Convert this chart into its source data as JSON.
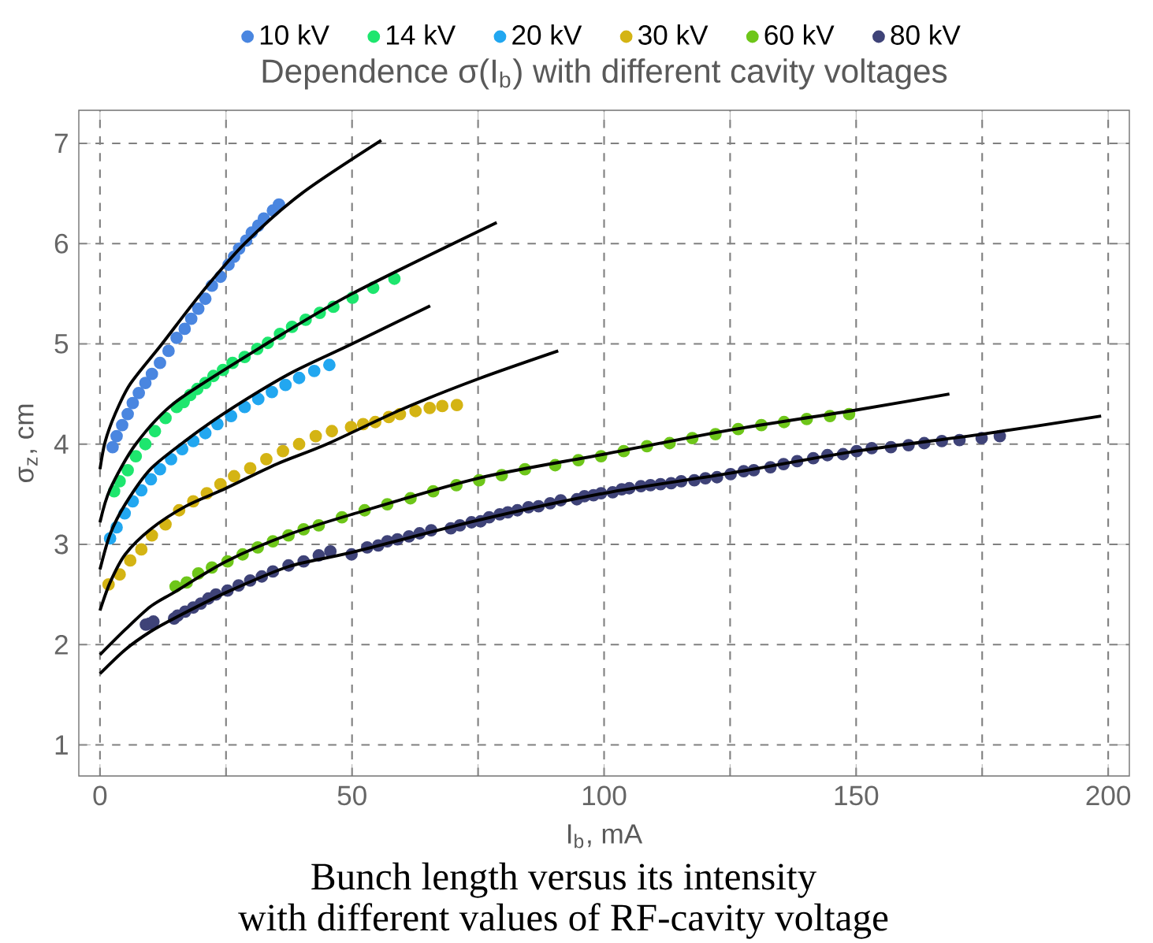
{
  "chart_data": {
    "type": "scatter",
    "title": "Dependence σ(I$_{b}$) with different cavity voltages",
    "xlabel": "I$_{b}$, mA",
    "ylabel": "σ$_{z}$, cm",
    "annotations": [
      "Bunch length versus its intensity",
      "with different values of RF-cavity voltage"
    ],
    "xlim": [
      -4.2,
      204.2
    ],
    "ylim": [
      0.69,
      7.33
    ],
    "xticks": [
      0,
      {
        "value": 25,
        "label": null
      },
      50,
      {
        "value": 75,
        "label": null
      },
      100,
      {
        "value": 125,
        "label": null
      },
      150,
      {
        "value": 175,
        "label": null
      },
      200
    ],
    "yticks": [
      1,
      2,
      3,
      4,
      5,
      6,
      7
    ],
    "grid": true,
    "legend": "top",
    "series": [
      {
        "name": "10 kV",
        "marker": "circle",
        "color": "#4a86e0",
        "x": [
          2.5,
          3.3,
          4.4,
          5.5,
          6.5,
          7.7,
          9,
          10.3,
          11.9,
          13.6,
          15.2,
          16.8,
          18.1,
          19.5,
          20.9,
          22.2,
          23.9,
          25.5,
          26.6,
          27.6,
          29,
          30.1,
          31.4,
          32.5,
          34.3,
          35.5
        ],
        "values": [
          3.97,
          4.08,
          4.19,
          4.3,
          4.41,
          4.51,
          4.61,
          4.7,
          4.81,
          4.93,
          5.06,
          5.15,
          5.25,
          5.35,
          5.45,
          5.58,
          5.67,
          5.79,
          5.87,
          5.95,
          6.03,
          6.11,
          6.18,
          6.25,
          6.33,
          6.39
        ]
      },
      {
        "name": "14 kV",
        "marker": "circle",
        "color": "#1ee66e",
        "x": [
          2.8,
          3.9,
          5.5,
          7.1,
          9,
          10.9,
          13,
          15.2,
          16.6,
          17.9,
          19.3,
          20.9,
          22.5,
          24.4,
          26.3,
          28.7,
          31.2,
          33.3,
          35.7,
          38.1,
          40.8,
          43.6,
          46.3,
          50.1,
          54.2,
          58.4
        ],
        "values": [
          3.53,
          3.63,
          3.74,
          3.88,
          4.0,
          4.13,
          4.26,
          4.37,
          4.42,
          4.49,
          4.55,
          4.61,
          4.68,
          4.74,
          4.81,
          4.87,
          4.95,
          5.01,
          5.1,
          5.17,
          5.24,
          5.31,
          5.37,
          5.46,
          5.56,
          5.65
        ]
      },
      {
        "name": "20 kV",
        "marker": "circle",
        "color": "#22a7f0",
        "x": [
          2,
          3.3,
          4.9,
          6.5,
          8.2,
          10.1,
          11.9,
          14.1,
          16.3,
          18.5,
          20.9,
          23.3,
          26,
          28.7,
          31.4,
          34.1,
          36.8,
          39.5,
          42.5,
          45.5
        ],
        "values": [
          3.06,
          3.17,
          3.31,
          3.43,
          3.54,
          3.65,
          3.75,
          3.85,
          3.95,
          4.03,
          4.11,
          4.2,
          4.28,
          4.37,
          4.45,
          4.52,
          4.59,
          4.66,
          4.73,
          4.79
        ]
      },
      {
        "name": "30 kV",
        "marker": "circle",
        "color": "#d4b414",
        "x": [
          1.7,
          3.9,
          6,
          8.2,
          10.3,
          13,
          15.7,
          18.5,
          21.2,
          23.9,
          26.6,
          29.8,
          33,
          36.3,
          39.5,
          42.8,
          46,
          49.8,
          52.2,
          54.6,
          57.3,
          59.5,
          62.6,
          65.4,
          67.9,
          70.8
        ],
        "values": [
          2.6,
          2.7,
          2.84,
          2.95,
          3.09,
          3.2,
          3.34,
          3.43,
          3.51,
          3.6,
          3.68,
          3.76,
          3.85,
          3.93,
          4.0,
          4.08,
          4.13,
          4.17,
          4.2,
          4.22,
          4.27,
          4.3,
          4.33,
          4.36,
          4.38,
          4.39
        ]
      },
      {
        "name": "60 kV",
        "marker": "circle",
        "color": "#6ec61a",
        "x": [
          15,
          17.2,
          19.5,
          22.2,
          25.3,
          28.3,
          31.3,
          34.3,
          37.4,
          40.4,
          43.4,
          48,
          52.5,
          57,
          61.6,
          66.1,
          70.7,
          75.2,
          79.7,
          84.3,
          90.3,
          94.9,
          99.4,
          103.9,
          108.5,
          113,
          117.5,
          122.1,
          126.6,
          131.2,
          135.7,
          140.2,
          144.8,
          148.6
        ],
        "values": [
          2.58,
          2.62,
          2.71,
          2.77,
          2.83,
          2.9,
          2.97,
          3.03,
          3.09,
          3.15,
          3.19,
          3.27,
          3.34,
          3.4,
          3.46,
          3.53,
          3.59,
          3.64,
          3.69,
          3.75,
          3.79,
          3.84,
          3.88,
          3.93,
          3.98,
          4.01,
          4.06,
          4.1,
          4.15,
          4.19,
          4.22,
          4.25,
          4.28,
          4.3
        ]
      },
      {
        "name": "80 kV",
        "marker": "circle",
        "color": "#3f4378",
        "x": [
          9.1,
          9.8,
          10.6,
          14.7,
          15.4,
          16.9,
          18.5,
          20,
          21.5,
          23,
          25.3,
          27.5,
          29.8,
          32.1,
          34.3,
          37.4,
          40.4,
          43.4,
          45.7,
          49.9,
          53,
          55.2,
          57,
          59,
          61.3,
          63.4,
          65.7,
          69.6,
          71.4,
          73.7,
          75.5,
          77.2,
          79.3,
          80.9,
          82.8,
          85,
          87,
          89.3,
          91.4,
          94.6,
          96.1,
          97.9,
          99.4,
          101.7,
          103.5,
          105,
          107.3,
          109.2,
          111.2,
          113.3,
          115.3,
          117.9,
          120.1,
          122.4,
          125.1,
          127.7,
          129.7,
          133,
          135.6,
          138.3,
          141.5,
          144.3,
          147.4,
          150.1,
          153.1,
          156.9,
          160.4,
          163.5,
          167,
          170.5,
          174.9,
          178.5
        ],
        "values": [
          2.2,
          2.21,
          2.23,
          2.26,
          2.29,
          2.33,
          2.37,
          2.41,
          2.46,
          2.5,
          2.54,
          2.59,
          2.64,
          2.68,
          2.73,
          2.79,
          2.83,
          2.89,
          2.93,
          2.9,
          2.97,
          2.99,
          3.03,
          3.05,
          3.08,
          3.11,
          3.14,
          3.16,
          3.19,
          3.22,
          3.23,
          3.27,
          3.3,
          3.32,
          3.34,
          3.37,
          3.38,
          3.41,
          3.44,
          3.45,
          3.48,
          3.49,
          3.51,
          3.52,
          3.55,
          3.56,
          3.58,
          3.59,
          3.6,
          3.61,
          3.63,
          3.64,
          3.66,
          3.67,
          3.7,
          3.73,
          3.74,
          3.77,
          3.8,
          3.83,
          3.86,
          3.89,
          3.9,
          3.93,
          3.96,
          3.97,
          3.99,
          4.01,
          4.03,
          4.04,
          4.06,
          4.08
        ]
      },
      {
        "type": "line",
        "marker": "none",
        "color": "#000000",
        "x": [
          0,
          1,
          3,
          6,
          12.3,
          20,
          28.7,
          40,
          55.8
        ],
        "values": [
          3.75,
          4.02,
          4.3,
          4.6,
          5.0,
          5.5,
          6.0,
          6.5,
          7.03
        ]
      },
      {
        "type": "line",
        "marker": "none",
        "color": "#000000",
        "x": [
          0,
          2,
          7.1,
          15,
          33,
          50,
          78.7
        ],
        "values": [
          3.22,
          3.55,
          4.0,
          4.42,
          5.0,
          5.5,
          6.21
        ]
      },
      {
        "type": "line",
        "marker": "none",
        "color": "#000000",
        "x": [
          0,
          2,
          5,
          10,
          17.4,
          25,
          37.5,
          50,
          65.5
        ],
        "values": [
          2.75,
          3.1,
          3.4,
          3.75,
          4.05,
          4.32,
          4.7,
          5.0,
          5.38
        ]
      },
      {
        "type": "line",
        "marker": "none",
        "color": "#000000",
        "x": [
          0,
          2,
          5,
          10,
          17,
          25,
          35,
          45,
          60,
          75,
          90.9
        ],
        "values": [
          2.34,
          2.62,
          2.9,
          3.15,
          3.38,
          3.56,
          3.8,
          4.0,
          4.35,
          4.65,
          4.93
        ]
      },
      {
        "type": "line",
        "marker": "none",
        "color": "#000000",
        "x": [
          0,
          5,
          10,
          15,
          25,
          37.5,
          50,
          75,
          100,
          125,
          150,
          168.5
        ],
        "values": [
          1.9,
          2.15,
          2.38,
          2.53,
          2.83,
          3.1,
          3.3,
          3.66,
          3.9,
          4.14,
          4.34,
          4.5
        ]
      },
      {
        "type": "line",
        "marker": "none",
        "color": "#000000",
        "x": [
          0,
          5,
          10,
          15,
          25,
          37.5,
          50,
          75,
          100,
          125,
          150,
          175,
          198.6
        ],
        "values": [
          1.71,
          1.95,
          2.13,
          2.27,
          2.52,
          2.78,
          2.92,
          3.24,
          3.51,
          3.71,
          3.93,
          4.1,
          4.28
        ]
      }
    ]
  }
}
